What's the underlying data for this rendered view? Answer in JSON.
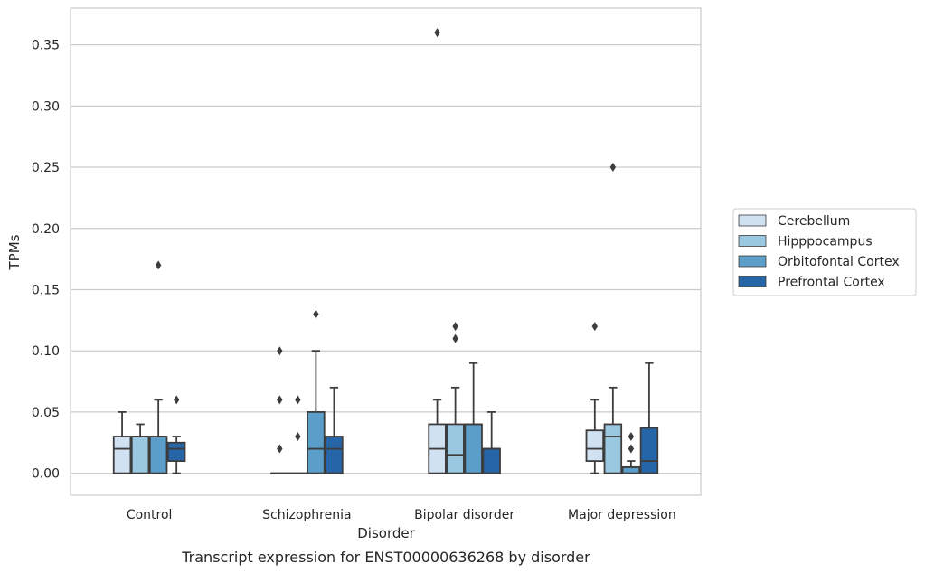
{
  "chart_data": {
    "type": "box",
    "title": "Transcript expression for ENST00000636268 by disorder",
    "xlabel": "Disorder",
    "ylabel": "TPMs",
    "ylim": [
      -0.018,
      0.38
    ],
    "yticks": [
      0.0,
      0.05,
      0.1,
      0.15,
      0.2,
      0.25,
      0.3,
      0.35
    ],
    "ytick_labels": [
      "0.00",
      "0.05",
      "0.10",
      "0.15",
      "0.20",
      "0.25",
      "0.30",
      "0.35"
    ],
    "grid": true,
    "legend_position": "right",
    "categories": [
      "Control",
      "Schizophrenia",
      "Bipolar disorder",
      "Major depression"
    ],
    "series": [
      {
        "name": "Cerebellum",
        "color": "#d0e1f2",
        "boxes": [
          {
            "q1": 0.0,
            "median": 0.02,
            "q3": 0.03,
            "whisker_low": 0.0,
            "whisker_high": 0.05,
            "outliers": []
          },
          {
            "q1": 0.0,
            "median": 0.0,
            "q3": 0.0,
            "whisker_low": 0.0,
            "whisker_high": 0.0,
            "outliers": [
              0.1,
              0.06,
              0.02
            ]
          },
          {
            "q1": 0.0,
            "median": 0.02,
            "q3": 0.04,
            "whisker_low": 0.0,
            "whisker_high": 0.06,
            "outliers": [
              0.36
            ]
          },
          {
            "q1": 0.01,
            "median": 0.02,
            "q3": 0.035,
            "whisker_low": 0.0,
            "whisker_high": 0.06,
            "outliers": [
              0.12
            ]
          }
        ]
      },
      {
        "name": "Hipppocampus",
        "color": "#9ac8e0",
        "boxes": [
          {
            "q1": 0.0,
            "median": 0.03,
            "q3": 0.03,
            "whisker_low": 0.0,
            "whisker_high": 0.04,
            "outliers": []
          },
          {
            "q1": 0.0,
            "median": 0.0,
            "q3": 0.0,
            "whisker_low": 0.0,
            "whisker_high": 0.0,
            "outliers": [
              0.06,
              0.03
            ]
          },
          {
            "q1": 0.0,
            "median": 0.015,
            "q3": 0.04,
            "whisker_low": 0.0,
            "whisker_high": 0.07,
            "outliers": [
              0.12,
              0.11
            ]
          },
          {
            "q1": 0.0,
            "median": 0.03,
            "q3": 0.04,
            "whisker_low": 0.0,
            "whisker_high": 0.07,
            "outliers": [
              0.25
            ]
          }
        ]
      },
      {
        "name": "Orbitofontal Cortex",
        "color": "#5a9ec9",
        "boxes": [
          {
            "q1": 0.0,
            "median": 0.03,
            "q3": 0.03,
            "whisker_low": 0.0,
            "whisker_high": 0.06,
            "outliers": [
              0.17
            ]
          },
          {
            "q1": 0.0,
            "median": 0.02,
            "q3": 0.05,
            "whisker_low": 0.0,
            "whisker_high": 0.1,
            "outliers": [
              0.13
            ]
          },
          {
            "q1": 0.0,
            "median": 0.04,
            "q3": 0.04,
            "whisker_low": 0.0,
            "whisker_high": 0.09,
            "outliers": []
          },
          {
            "q1": 0.0,
            "median": 0.005,
            "q3": 0.005,
            "whisker_low": 0.0,
            "whisker_high": 0.01,
            "outliers": [
              0.03,
              0.02
            ]
          }
        ]
      },
      {
        "name": "Prefrontal Cortex",
        "color": "#2565a8",
        "boxes": [
          {
            "q1": 0.01,
            "median": 0.02,
            "q3": 0.025,
            "whisker_low": 0.0,
            "whisker_high": 0.03,
            "outliers": [
              0.06
            ]
          },
          {
            "q1": 0.0,
            "median": 0.02,
            "q3": 0.03,
            "whisker_low": 0.0,
            "whisker_high": 0.07,
            "outliers": []
          },
          {
            "q1": 0.0,
            "median": 0.02,
            "q3": 0.02,
            "whisker_low": 0.0,
            "whisker_high": 0.05,
            "outliers": []
          },
          {
            "q1": 0.0,
            "median": 0.01,
            "q3": 0.037,
            "whisker_low": 0.0,
            "whisker_high": 0.09,
            "outliers": []
          }
        ]
      }
    ]
  }
}
